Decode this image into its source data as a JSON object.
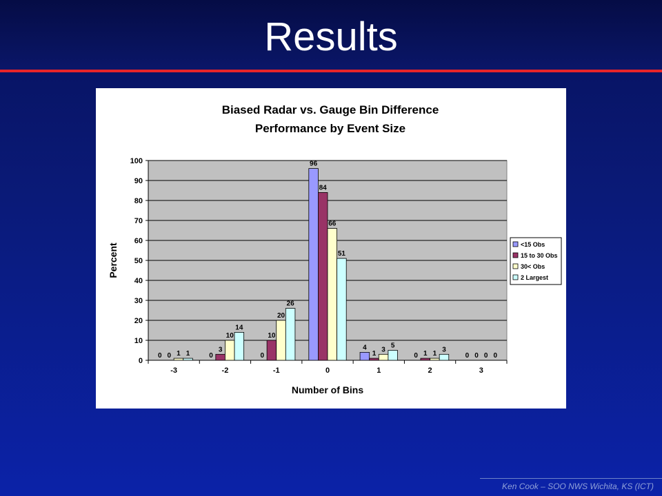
{
  "slide": {
    "title": "Results",
    "footer": "Ken Cook – SOO NWS Wichita, KS (ICT)"
  },
  "chart_data": {
    "type": "bar",
    "title": [
      "Biased Radar vs. Gauge Bin Difference",
      "Performance by Event Size"
    ],
    "xlabel": "Number of Bins",
    "ylabel": "Percent",
    "ylim": [
      0,
      100
    ],
    "yticks": [
      0,
      10,
      20,
      30,
      40,
      50,
      60,
      70,
      80,
      90,
      100
    ],
    "grid": true,
    "legend_placement": "right",
    "categories": [
      "-3",
      "-2",
      "-1",
      "0",
      "1",
      "2",
      "3"
    ],
    "series": [
      {
        "name": "<15 Obs",
        "values": [
          0,
          0,
          0,
          96,
          4,
          0,
          0
        ],
        "color": "#9999ff"
      },
      {
        "name": "15 to 30 Obs",
        "values": [
          0,
          3,
          10,
          84,
          1,
          1,
          0
        ],
        "color": "#993366"
      },
      {
        "name": "30< Obs",
        "values": [
          1,
          10,
          20,
          66,
          3,
          1,
          0
        ],
        "color": "#ffffcc"
      },
      {
        "name": "2 Largest",
        "values": [
          1,
          14,
          26,
          51,
          5,
          3,
          0
        ],
        "color": "#ccffff"
      }
    ],
    "plot_background": "#c0c0c0"
  }
}
